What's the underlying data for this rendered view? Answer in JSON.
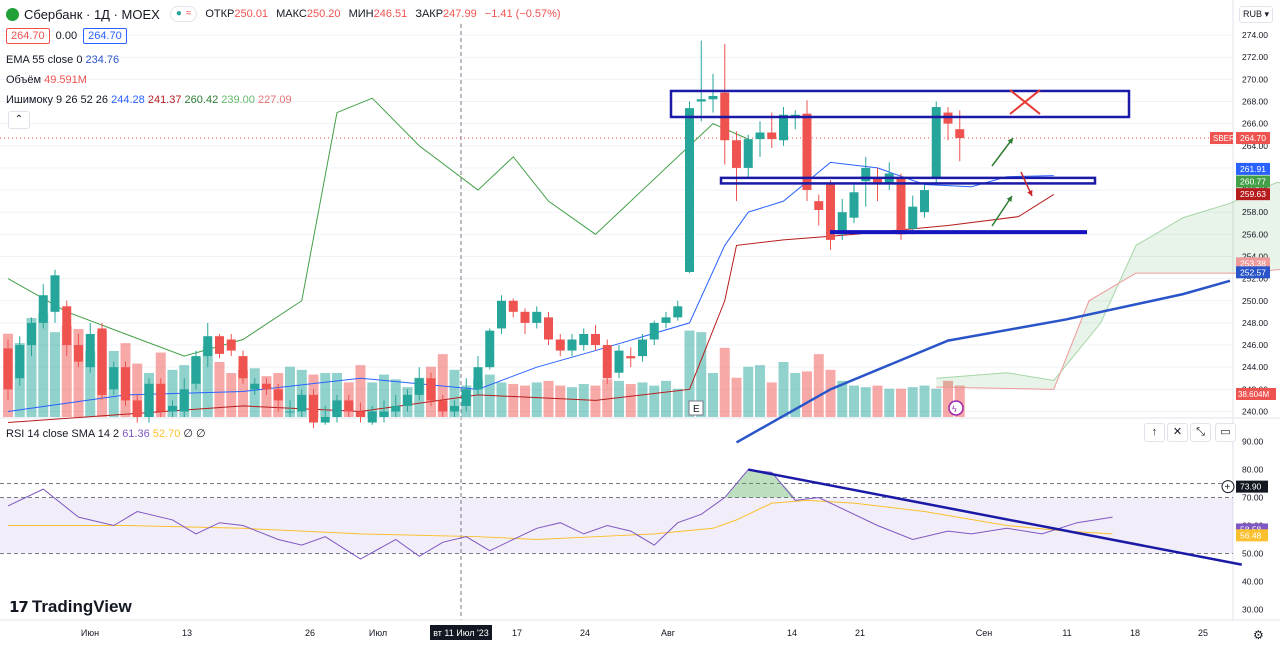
{
  "header": {
    "title": "Сбербанк · 1Д · MOEX",
    "open_label": "ОТКР",
    "open": "250.01",
    "high_label": "МАКС",
    "high": "250.20",
    "low_label": "МИН",
    "low": "246.51",
    "close_label": "ЗАКР",
    "close": "247.99",
    "change": "−1.41 (−0.57%)"
  },
  "pricebox": {
    "sell": "264.70",
    "spread": "0.00",
    "buy": "264.70"
  },
  "indicators": {
    "ema": {
      "label": "EMA 55 close 0",
      "value": "234.76"
    },
    "volume": {
      "label": "Объём",
      "value": "49.591M"
    },
    "ichimoku": {
      "label": "Ишимоку 9 26 52 26",
      "v1": "244.28",
      "v2": "241.37",
      "v3": "260.42",
      "v4": "239.00",
      "v5": "227.09"
    },
    "rsi": {
      "label": "RSI 14 close SMA 14 2",
      "v1": "61.36",
      "v2": "52.70",
      "v3": "∅",
      "v4": "∅"
    }
  },
  "currency": "RUB",
  "brand": "TradingView",
  "colors": {
    "up": "#26a69a",
    "down": "#ef5350",
    "ema": "#2a55c8",
    "tenkan": "#2962ff",
    "kijun": "#b71c1c",
    "lagging": "#43a047",
    "cloud": "#43a047",
    "rsi": "#7e57c2",
    "rsi_sma": "#fbc02d",
    "annotation": "#1a1aa6"
  },
  "chart_data": [
    {
      "type": "candlestick",
      "name": "price",
      "ylim": [
        239.5,
        275
      ],
      "y_ticks": [
        "274.00",
        "272.00",
        "270.00",
        "268.00",
        "266.00",
        "264.00",
        "262.00",
        "260.00",
        "258.00",
        "256.00",
        "254.00",
        "252.00",
        "250.00",
        "248.00",
        "246.00",
        "244.00",
        "242.00",
        "240.00"
      ],
      "x_ticks": [
        "Июн",
        "13",
        "26",
        "Июл",
        "вт 11 Июл '23",
        "17",
        "24",
        "Авг",
        "14",
        "21",
        "Сен",
        "11",
        "18",
        "25"
      ],
      "candles": [
        [
          245.7,
          242.0,
          246.5,
          241.0
        ],
        [
          243.0,
          246.0,
          246.8,
          242.3
        ],
        [
          246.0,
          248.0,
          248.5,
          245.0
        ],
        [
          248.0,
          250.5,
          251.5,
          247.5
        ],
        [
          249.0,
          252.3,
          252.8,
          248.0
        ],
        [
          249.5,
          246.0,
          250.0,
          245.0
        ],
        [
          246.0,
          244.5,
          247.0,
          244.0
        ],
        [
          244.0,
          247.0,
          248.0,
          243.5
        ],
        [
          247.5,
          241.5,
          248.0,
          241.0
        ],
        [
          242.0,
          244.0,
          244.5,
          241.5
        ],
        [
          244.0,
          241.0,
          244.5,
          240.5
        ],
        [
          241.0,
          239.5,
          241.5,
          239.0
        ],
        [
          239.5,
          242.5,
          243.0,
          239.0
        ],
        [
          242.5,
          240.0,
          243.0,
          239.5
        ],
        [
          240.0,
          240.5,
          241.0,
          239.5
        ],
        [
          240.0,
          242.0,
          243.0,
          239.5
        ],
        [
          242.5,
          245.0,
          245.5,
          242.0
        ],
        [
          245.0,
          246.8,
          248.0,
          244.0
        ],
        [
          246.8,
          245.2,
          247.0,
          244.8
        ],
        [
          246.5,
          245.5,
          247.0,
          245.0
        ],
        [
          245.0,
          243.0,
          245.5,
          242.5
        ],
        [
          242.0,
          242.5,
          243.0,
          241.5
        ],
        [
          242.5,
          242.0,
          243.0,
          241.5
        ],
        [
          242.0,
          241.0,
          242.5,
          240.0
        ],
        [
          240.0,
          240.0,
          241.0,
          239.5
        ],
        [
          240.0,
          241.5,
          242.0,
          239.5
        ],
        [
          241.5,
          239.0,
          242.0,
          238.5
        ],
        [
          239.0,
          239.5,
          240.5,
          238.8
        ],
        [
          239.5,
          241.0,
          241.5,
          239.0
        ],
        [
          241.0,
          240.0,
          241.5,
          239.5
        ],
        [
          240.0,
          239.5,
          240.8,
          239.0
        ],
        [
          239.0,
          240.0,
          240.5,
          238.8
        ],
        [
          239.5,
          240.0,
          241.0,
          239.0
        ],
        [
          240.0,
          240.5,
          241.5,
          239.5
        ],
        [
          240.5,
          241.5,
          242.0,
          240.0
        ],
        [
          241.5,
          243.0,
          244.0,
          241.0
        ],
        [
          243.0,
          241.0,
          243.5,
          240.5
        ],
        [
          241.0,
          240.0,
          241.5,
          239.5
        ],
        [
          240.0,
          240.5,
          241.0,
          239.5
        ],
        [
          240.5,
          242.0,
          243.0,
          240.0
        ],
        [
          242.0,
          244.0,
          245.0,
          241.5
        ],
        [
          244.0,
          247.3,
          247.5,
          243.8
        ],
        [
          247.5,
          250.0,
          250.5,
          247.0
        ],
        [
          250.0,
          249.0,
          250.2,
          248.5
        ],
        [
          249.0,
          248.0,
          249.3,
          247.0
        ],
        [
          248.0,
          249.0,
          249.5,
          247.5
        ],
        [
          248.5,
          246.5,
          249.0,
          246.0
        ],
        [
          246.5,
          245.5,
          247.0,
          245.0
        ],
        [
          245.5,
          246.5,
          247.0,
          245.0
        ],
        [
          246.0,
          247.0,
          247.5,
          245.5
        ],
        [
          247.0,
          246.0,
          247.8,
          245.5
        ],
        [
          246.0,
          243.0,
          246.5,
          242.5
        ],
        [
          243.5,
          245.5,
          246.0,
          243.0
        ],
        [
          245.0,
          244.8,
          245.8,
          244.0
        ],
        [
          245.0,
          246.5,
          247.0,
          244.5
        ],
        [
          246.5,
          248.0,
          248.2,
          246.0
        ],
        [
          248.0,
          248.5,
          249.0,
          247.5
        ],
        [
          248.5,
          249.5,
          250.0,
          248.2
        ],
        [
          252.6,
          267.4,
          268.0,
          252.5
        ],
        [
          268.0,
          268.2,
          273.5,
          266.2
        ],
        [
          268.2,
          268.5,
          270.5,
          267.0
        ],
        [
          268.8,
          264.5,
          273.2,
          262.3
        ],
        [
          264.5,
          262.0,
          265.3,
          259.0
        ],
        [
          262.0,
          264.6,
          265.0,
          261.0
        ],
        [
          264.6,
          265.2,
          266.2,
          263.0
        ],
        [
          265.2,
          264.6,
          267.0,
          263.8
        ],
        [
          264.5,
          266.8,
          267.5,
          264.0
        ],
        [
          266.5,
          266.8,
          267.2,
          265.5
        ],
        [
          266.9,
          260.0,
          268.1,
          259.0
        ],
        [
          259.0,
          258.2,
          259.6,
          256.8
        ],
        [
          260.6,
          255.5,
          260.9,
          254.6
        ],
        [
          256.0,
          258.0,
          259.2,
          255.5
        ],
        [
          257.5,
          259.8,
          260.5,
          257.0
        ],
        [
          260.8,
          262.0,
          263.0,
          258.5
        ],
        [
          261.0,
          260.5,
          262.0,
          259.0
        ],
        [
          260.5,
          261.5,
          262.5,
          260.0
        ],
        [
          261.0,
          256.0,
          261.5,
          255.5
        ],
        [
          256.5,
          258.5,
          259.5,
          256.0
        ],
        [
          258.0,
          260.0,
          260.5,
          257.5
        ],
        [
          261.0,
          267.5,
          268.0,
          260.5
        ],
        [
          267.0,
          266.0,
          267.5,
          264.5
        ],
        [
          265.5,
          264.7,
          267.2,
          262.6
        ]
      ],
      "volume_millions": [
        53,
        47,
        63,
        66,
        54,
        58,
        56,
        42,
        55,
        42,
        47,
        34,
        28,
        41,
        30,
        33,
        38,
        45,
        35,
        28,
        30,
        31,
        26,
        28,
        32,
        30,
        27,
        28,
        28,
        22,
        33,
        22,
        27,
        24,
        19,
        25,
        32,
        40,
        30,
        20,
        24,
        27,
        22,
        21,
        20,
        22,
        23,
        20,
        19,
        21,
        20,
        24,
        23,
        21,
        22,
        20,
        23,
        18,
        55,
        54,
        28,
        44,
        25,
        32,
        33,
        22,
        35,
        28,
        29,
        40,
        30,
        23,
        20,
        19,
        20,
        18,
        18,
        19,
        20,
        18,
        23,
        20
      ],
      "volume_axis": [
        "38.604M"
      ],
      "ema55": [
        [
          62,
          237.2
        ],
        [
          70,
          242.0
        ],
        [
          80,
          246.4
        ],
        [
          90,
          248.3
        ],
        [
          100,
          250.6
        ],
        [
          104,
          251.8
        ]
      ],
      "tenkan": [
        [
          0,
          240.0
        ],
        [
          10,
          241.5
        ],
        [
          20,
          241.8
        ],
        [
          30,
          243.0
        ],
        [
          40,
          242.0
        ],
        [
          45,
          244.0
        ],
        [
          50,
          245.5
        ],
        [
          58,
          248.0
        ],
        [
          61,
          255.0
        ],
        [
          63,
          258.0
        ],
        [
          66,
          259.0
        ],
        [
          70,
          262.5
        ],
        [
          74,
          262.0
        ],
        [
          78,
          260.5
        ],
        [
          82,
          260.3
        ],
        [
          85,
          261.2
        ],
        [
          89,
          261.3
        ]
      ],
      "kijun": [
        [
          0,
          239.0
        ],
        [
          20,
          240.5
        ],
        [
          30,
          240.0
        ],
        [
          40,
          241.5
        ],
        [
          50,
          241.0
        ],
        [
          58,
          242.0
        ],
        [
          61,
          250.0
        ],
        [
          62,
          255.0
        ],
        [
          66,
          255.5
        ],
        [
          72,
          256.0
        ],
        [
          80,
          256.8
        ],
        [
          86,
          257.6
        ],
        [
          89,
          259.6
        ]
      ],
      "lagging_span": [
        [
          0,
          252.0
        ],
        [
          5,
          249.0
        ],
        [
          10,
          247.0
        ],
        [
          15,
          245.0
        ],
        [
          20,
          246.5
        ],
        [
          25,
          250.0
        ],
        [
          28,
          267.0
        ],
        [
          31,
          268.3
        ],
        [
          35,
          264.0
        ],
        [
          40,
          260.0
        ],
        [
          43,
          263.0
        ],
        [
          46,
          259.0
        ],
        [
          50,
          256.0
        ],
        [
          54,
          260.0
        ],
        [
          58,
          264.0
        ],
        [
          60,
          266.0
        ],
        [
          63,
          264.6
        ]
      ],
      "cloud_span_a": [
        [
          79,
          243.0
        ],
        [
          85,
          243.5
        ],
        [
          89,
          242.8
        ],
        [
          93,
          248.0
        ],
        [
          96,
          255.0
        ],
        [
          100,
          257.5
        ],
        [
          104,
          258.8
        ],
        [
          108,
          260.7
        ],
        [
          112,
          259.8
        ],
        [
          116,
          259.5
        ],
        [
          118,
          259.5
        ]
      ],
      "cloud_span_b": [
        [
          79,
          242.2
        ],
        [
          89,
          242.0
        ],
        [
          92,
          250.0
        ],
        [
          96,
          252.5
        ],
        [
          105,
          252.5
        ],
        [
          110,
          253.0
        ],
        [
          118,
          253.4
        ]
      ],
      "right_labels": [
        {
          "label": "SBER",
          "value": "264.70",
          "y": 264.7
        },
        {
          "label": "",
          "value": "261.91",
          "y": 261.91
        },
        {
          "label": "",
          "value": "260.77",
          "y": 260.77
        },
        {
          "label": "",
          "value": "259.63",
          "y": 259.63
        },
        {
          "label": "",
          "value": "253.38",
          "y": 253.38
        },
        {
          "label": "",
          "value": "252.57",
          "y": 252.57
        }
      ],
      "annotations": {
        "resistance_box": [
          268.95,
          266.6
        ],
        "support_box": [
          261.1,
          260.6
        ],
        "support_line": 256.2
      }
    },
    {
      "type": "line",
      "name": "RSI 14",
      "ylim": [
        28,
        92
      ],
      "y_ticks": [
        "90.00",
        "80.00",
        "70.00",
        "60.00",
        "50.00",
        "40.00",
        "30.00"
      ],
      "bands": [
        50,
        70,
        75
      ],
      "rsi": [
        [
          0,
          67
        ],
        [
          3,
          73
        ],
        [
          6,
          63
        ],
        [
          9,
          60
        ],
        [
          11,
          65
        ],
        [
          14,
          62
        ],
        [
          16,
          57
        ],
        [
          18,
          61
        ],
        [
          20,
          60
        ],
        [
          23,
          55
        ],
        [
          25,
          53
        ],
        [
          27,
          56
        ],
        [
          30,
          48
        ],
        [
          33,
          55
        ],
        [
          35,
          49
        ],
        [
          37,
          54
        ],
        [
          39,
          56
        ],
        [
          41,
          51
        ],
        [
          43,
          55
        ],
        [
          45,
          59
        ],
        [
          47,
          61
        ],
        [
          49,
          57
        ],
        [
          51,
          60
        ],
        [
          53,
          58
        ],
        [
          55,
          53
        ],
        [
          57,
          61
        ],
        [
          59,
          64
        ],
        [
          61,
          70
        ],
        [
          63,
          80
        ],
        [
          65,
          79
        ],
        [
          67,
          69
        ],
        [
          69,
          70
        ],
        [
          71,
          66
        ],
        [
          74,
          60
        ],
        [
          77,
          55
        ],
        [
          80,
          58
        ],
        [
          82,
          57
        ],
        [
          85,
          59
        ],
        [
          88,
          57
        ],
        [
          91,
          61
        ],
        [
          94,
          63
        ]
      ],
      "rsi_sma": [
        [
          0,
          60
        ],
        [
          10,
          60
        ],
        [
          20,
          59
        ],
        [
          30,
          57
        ],
        [
          40,
          56
        ],
        [
          45,
          55
        ],
        [
          50,
          56
        ],
        [
          55,
          57
        ],
        [
          60,
          59
        ],
        [
          62,
          62
        ],
        [
          65,
          68
        ],
        [
          68,
          69
        ],
        [
          72,
          68
        ],
        [
          78,
          65
        ],
        [
          85,
          60
        ],
        [
          90,
          58
        ],
        [
          94,
          57
        ]
      ],
      "right_labels": [
        {
          "value": "73.90",
          "y": 73.9
        },
        {
          "value": "58.58",
          "y": 58.58
        },
        {
          "value": "56.48",
          "y": 56.48
        }
      ],
      "trendline": [
        [
          63,
          80
        ],
        [
          105,
          46
        ]
      ]
    }
  ]
}
